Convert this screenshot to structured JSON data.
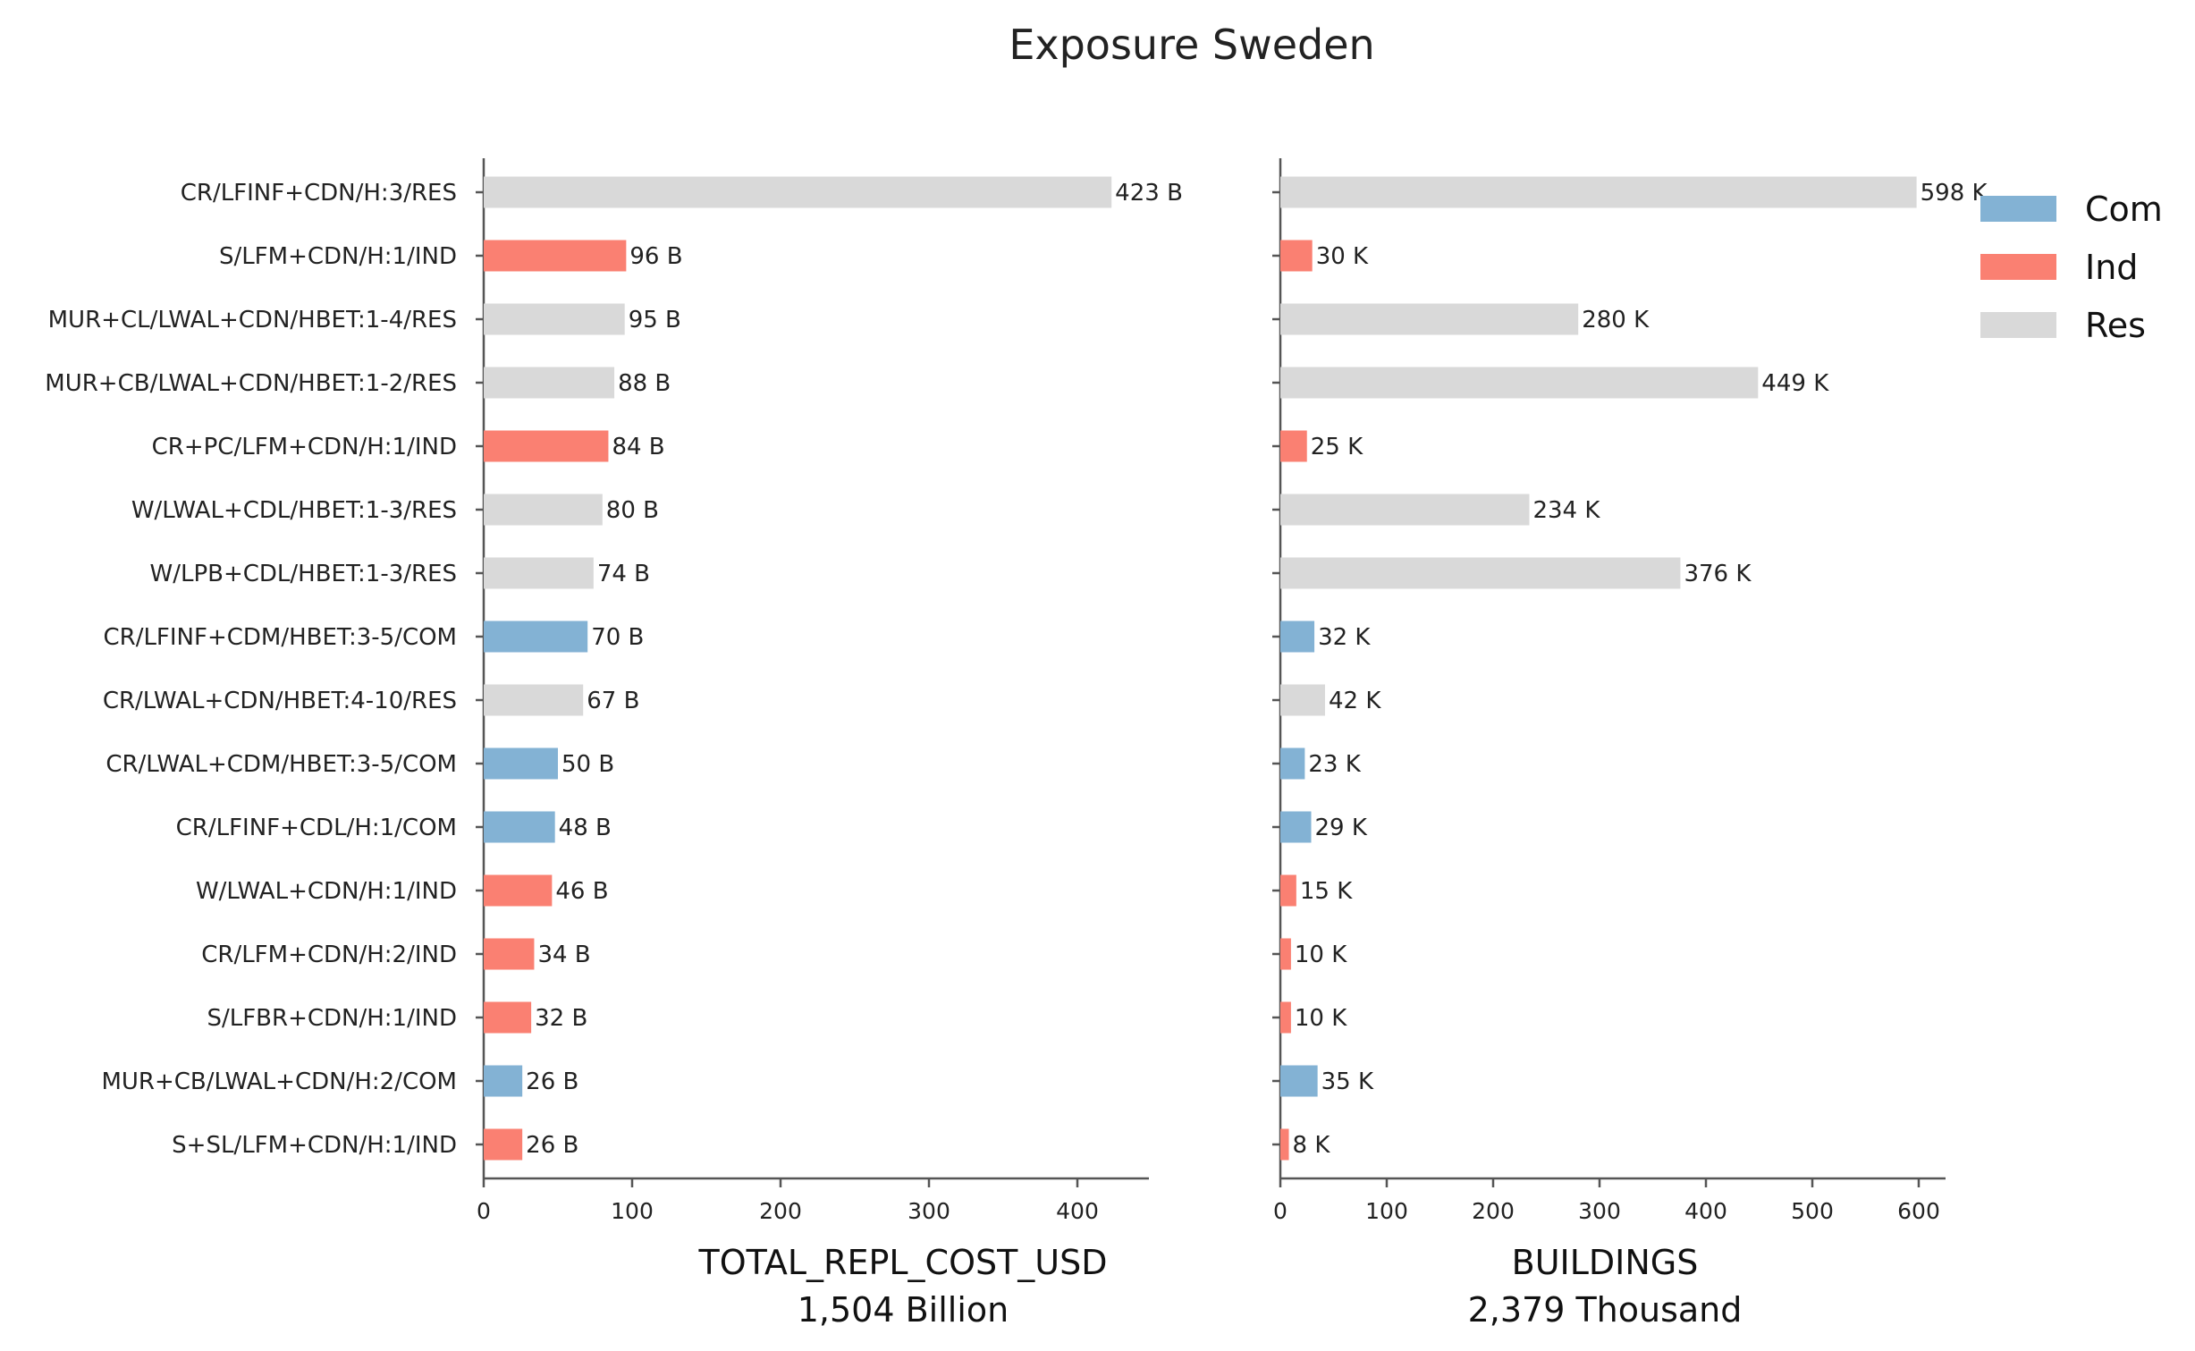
{
  "title": "Exposure Sweden",
  "colors": {
    "Com": "#83b2d4",
    "Ind": "#fa8072",
    "Res": "#d9d9d9"
  },
  "legend": [
    {
      "key": "Com",
      "label": "Com"
    },
    {
      "key": "Ind",
      "label": "Ind"
    },
    {
      "key": "Res",
      "label": "Res"
    }
  ],
  "chart_data": [
    {
      "type": "bar",
      "orientation": "horizontal",
      "xlabel": "TOTAL_REPL_COST_USD",
      "xlabel_sub": "1,504 Billion",
      "xticks": [
        0,
        100,
        200,
        300,
        400
      ],
      "xlim": [
        0,
        445
      ],
      "categories": [
        "CR/LFINF+CDN/H:3/RES",
        "S/LFM+CDN/H:1/IND",
        "MUR+CL/LWAL+CDN/HBET:1-4/RES",
        "MUR+CB/LWAL+CDN/HBET:1-2/RES",
        "CR+PC/LFM+CDN/H:1/IND",
        "W/LWAL+CDL/HBET:1-3/RES",
        "W/LPB+CDL/HBET:1-3/RES",
        "CR/LFINF+CDM/HBET:3-5/COM",
        "CR/LWAL+CDN/HBET:4-10/RES",
        "CR/LWAL+CDM/HBET:3-5/COM",
        "CR/LFINF+CDL/H:1/COM",
        "W/LWAL+CDN/H:1/IND",
        "CR/LFM+CDN/H:2/IND",
        "S/LFBR+CDN/H:1/IND",
        "MUR+CB/LWAL+CDN/H:2/COM",
        "S+SL/LFM+CDN/H:1/IND"
      ],
      "groups": [
        "Res",
        "Ind",
        "Res",
        "Res",
        "Ind",
        "Res",
        "Res",
        "Com",
        "Res",
        "Com",
        "Com",
        "Ind",
        "Ind",
        "Ind",
        "Com",
        "Ind"
      ],
      "values": [
        423,
        96,
        95,
        88,
        84,
        80,
        74,
        70,
        67,
        50,
        48,
        46,
        34,
        32,
        26,
        26
      ],
      "labels": [
        "423 B",
        "96 B",
        "95 B",
        "88 B",
        "84 B",
        "80 B",
        "74 B",
        "70 B",
        "67 B",
        "50 B",
        "48 B",
        "46 B",
        "34 B",
        "32 B",
        "26 B",
        "26 B"
      ]
    },
    {
      "type": "bar",
      "orientation": "horizontal",
      "xlabel": "BUILDINGS",
      "xlabel_sub": "2,379 Thousand",
      "xticks": [
        0,
        100,
        200,
        300,
        400,
        500,
        600
      ],
      "xlim": [
        0,
        628
      ],
      "groups": [
        "Res",
        "Ind",
        "Res",
        "Res",
        "Ind",
        "Res",
        "Res",
        "Com",
        "Res",
        "Com",
        "Com",
        "Ind",
        "Ind",
        "Ind",
        "Com",
        "Ind"
      ],
      "values": [
        598,
        30,
        280,
        449,
        25,
        234,
        376,
        32,
        42,
        23,
        29,
        15,
        10,
        10,
        35,
        8
      ],
      "labels": [
        "598 K",
        "30 K",
        "280 K",
        "449 K",
        "25 K",
        "234 K",
        "376 K",
        "32 K",
        "42 K",
        "23 K",
        "29 K",
        "15 K",
        "10 K",
        "10 K",
        "35 K",
        "8 K"
      ]
    }
  ]
}
